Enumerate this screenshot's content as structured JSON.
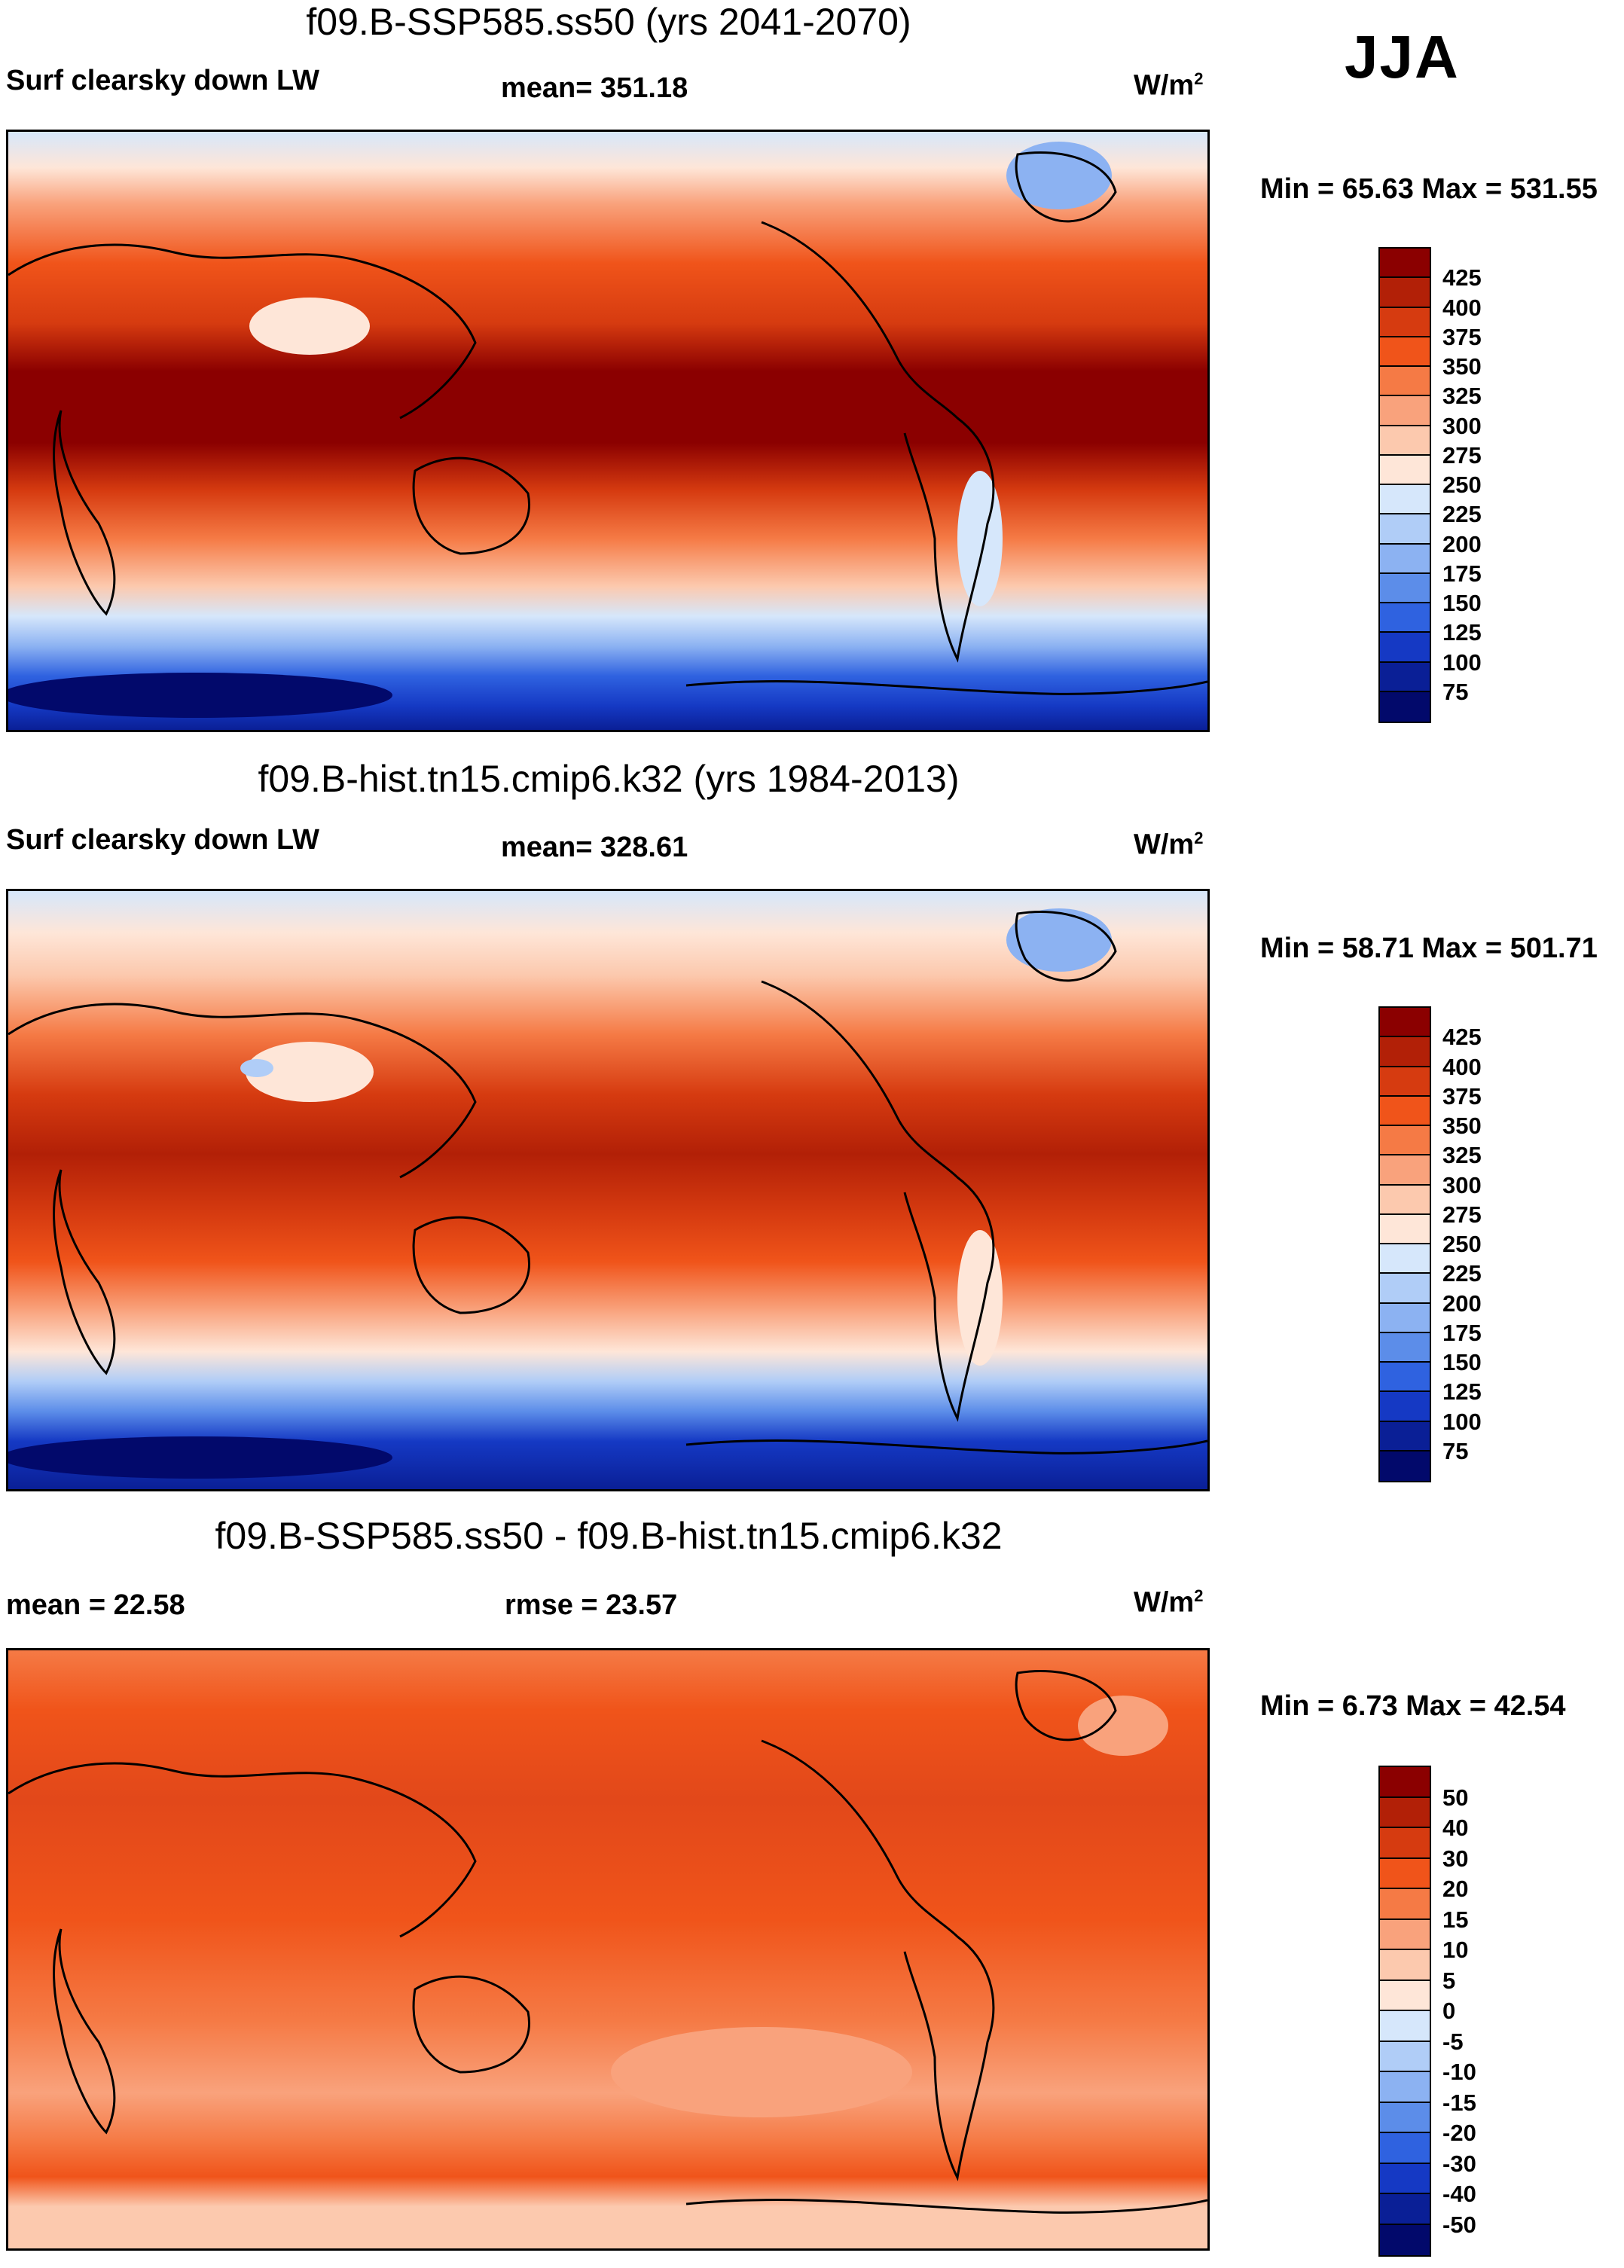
{
  "season": "JJA",
  "panels": [
    {
      "id": "future",
      "title": "f09.B-SSP585.ss50 (yrs 2041-2070)",
      "variable": "Surf clearsky down LW",
      "left_label": "Surf clearsky down LW",
      "stat_label": "mean= 351.18",
      "units_base": "W/m",
      "units_sup": "2",
      "minmax": "Min =  65.63 Max = 531.55",
      "colorbar_labels": [
        "425",
        "400",
        "375",
        "350",
        "325",
        "300",
        "275",
        "250",
        "225",
        "200",
        "175",
        "150",
        "125",
        "100",
        "75"
      ],
      "colorbar_colors": [
        "#8b0000",
        "#b22007",
        "#d63b10",
        "#f0541a",
        "#f57a45",
        "#f9a27c",
        "#fcc9ae",
        "#fee6d8",
        "#d6e7fb",
        "#b0cdf7",
        "#8cb2f2",
        "#5c8de9",
        "#2f62e0",
        "#1539c4",
        "#0a1f96",
        "#02096b"
      ]
    },
    {
      "id": "historical",
      "title": "f09.B-hist.tn15.cmip6.k32 (yrs 1984-2013)",
      "variable": "Surf clearsky down LW",
      "left_label": "Surf clearsky down LW",
      "stat_label": "mean= 328.61",
      "units_base": "W/m",
      "units_sup": "2",
      "minmax": "Min =  58.71 Max = 501.71",
      "colorbar_labels": [
        "425",
        "400",
        "375",
        "350",
        "325",
        "300",
        "275",
        "250",
        "225",
        "200",
        "175",
        "150",
        "125",
        "100",
        "75"
      ],
      "colorbar_colors": [
        "#8b0000",
        "#b22007",
        "#d63b10",
        "#f0541a",
        "#f57a45",
        "#f9a27c",
        "#fcc9ae",
        "#fee6d8",
        "#d6e7fb",
        "#b0cdf7",
        "#8cb2f2",
        "#5c8de9",
        "#2f62e0",
        "#1539c4",
        "#0a1f96",
        "#02096b"
      ]
    },
    {
      "id": "difference",
      "title": "f09.B-SSP585.ss50 - f09.B-hist.tn15.cmip6.k32",
      "left_label": "mean =  22.58",
      "stat_label": "rmse =  23.57",
      "units_base": "W/m",
      "units_sup": "2",
      "minmax": "Min =   6.73 Max =  42.54",
      "colorbar_labels": [
        "50",
        "40",
        "30",
        "20",
        "15",
        "10",
        "5",
        "0",
        "-5",
        "-10",
        "-15",
        "-20",
        "-30",
        "-40",
        "-50"
      ],
      "colorbar_colors": [
        "#8b0000",
        "#b22007",
        "#d63b10",
        "#f0541a",
        "#f57a45",
        "#f9a27c",
        "#fcc9ae",
        "#fee6d8",
        "#d6e7fb",
        "#b0cdf7",
        "#8cb2f2",
        "#5c8de9",
        "#2f62e0",
        "#1539c4",
        "#0a1f96",
        "#02096b"
      ]
    }
  ]
}
